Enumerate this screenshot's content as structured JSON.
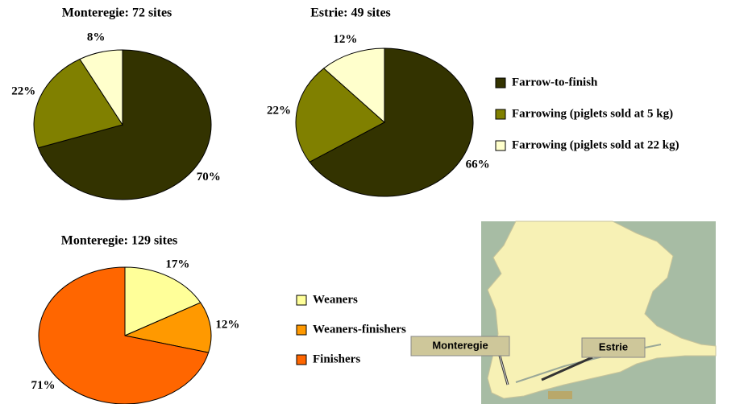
{
  "chart_data": [
    {
      "type": "pie",
      "title": "Monteregie: 72 sites",
      "categories": [
        "Farrow-to-finish",
        "Farrowing (piglets sold at 5 kg)",
        "Farrowing (piglets sold at 22 kg)"
      ],
      "colors": [
        "#333300",
        "#808000",
        "#ffffcc"
      ],
      "values": [
        70,
        22,
        8
      ],
      "value_labels": [
        "70%",
        "22%",
        "8%"
      ]
    },
    {
      "type": "pie",
      "title": "Estrie: 49 sites",
      "colors": [
        "#333300",
        "#808000",
        "#ffffcc"
      ],
      "values": [
        66,
        22,
        12
      ],
      "value_labels": [
        "66%",
        "22%",
        "12%"
      ]
    },
    {
      "type": "pie",
      "title": "Monteregie: 129 sites",
      "categories": [
        "Weaners",
        "Weaners-finishers",
        "Finishers"
      ],
      "colors": [
        "#ffff99",
        "#ff9900",
        "#ff6600"
      ],
      "values": [
        17,
        12,
        71
      ],
      "value_labels": [
        "17%",
        "12%",
        "71%"
      ]
    }
  ],
  "map": {
    "labels": [
      "Monteregie",
      "Estrie"
    ]
  }
}
